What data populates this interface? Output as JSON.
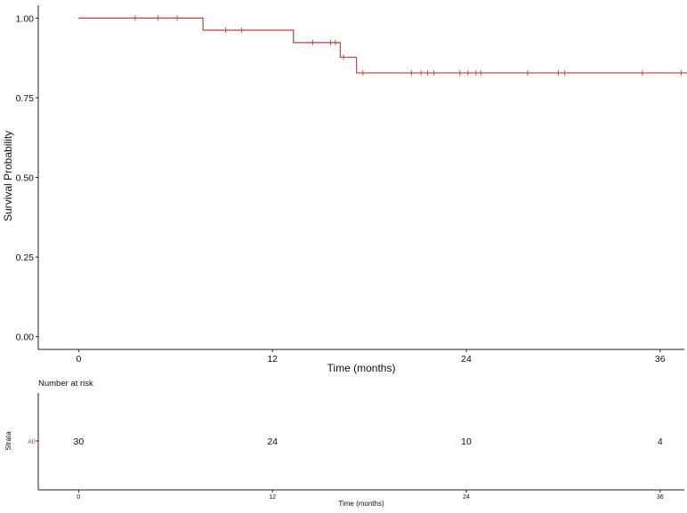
{
  "chart_data": [
    {
      "type": "line",
      "subtype": "kaplan-meier",
      "title": "",
      "xlabel": "Time (months)",
      "ylabel": "Survival Probability",
      "xlim": [
        -2.5,
        37.5
      ],
      "ylim": [
        -0.04,
        1.04
      ],
      "xticks": [
        0,
        12,
        24,
        36
      ],
      "xtick_labels": [
        "0",
        "12",
        "24",
        "36"
      ],
      "yticks": [
        0.0,
        0.25,
        0.5,
        0.75,
        1.0
      ],
      "ytick_labels": [
        "0.00",
        "0.25",
        "0.50",
        "0.75",
        "1.00"
      ],
      "grid": false,
      "legend": "none",
      "series": [
        {
          "color": "#c0504d",
          "steps": [
            {
              "x": 0,
              "y": 1.0
            },
            {
              "x": 7.7,
              "y": 0.962
            },
            {
              "x": 13.3,
              "y": 0.923
            },
            {
              "x": 16.2,
              "y": 0.877
            },
            {
              "x": 17.2,
              "y": 0.828
            },
            {
              "x": 38.0,
              "y": 0.828
            }
          ],
          "censor_x": [
            3.5,
            4.9,
            6.1,
            9.1,
            10.1,
            14.5,
            15.6,
            15.9,
            16.4,
            17.6,
            20.6,
            21.2,
            21.6,
            22.0,
            23.6,
            24.1,
            24.6,
            24.9,
            27.8,
            29.7,
            30.1,
            34.9,
            37.3
          ]
        }
      ]
    },
    {
      "type": "table",
      "title": "Number at risk",
      "xlabel": "Time (months)",
      "ylabel": "Strata",
      "xlim": [
        -2.5,
        37.5
      ],
      "xticks": [
        0,
        12,
        24,
        36
      ],
      "xtick_labels": [
        "0",
        "12",
        "24",
        "36"
      ],
      "strata": [
        {
          "name": "All",
          "color": "#c0504d",
          "times": [
            0,
            12,
            24,
            36
          ],
          "counts": [
            30,
            24,
            10,
            4
          ]
        }
      ]
    }
  ]
}
